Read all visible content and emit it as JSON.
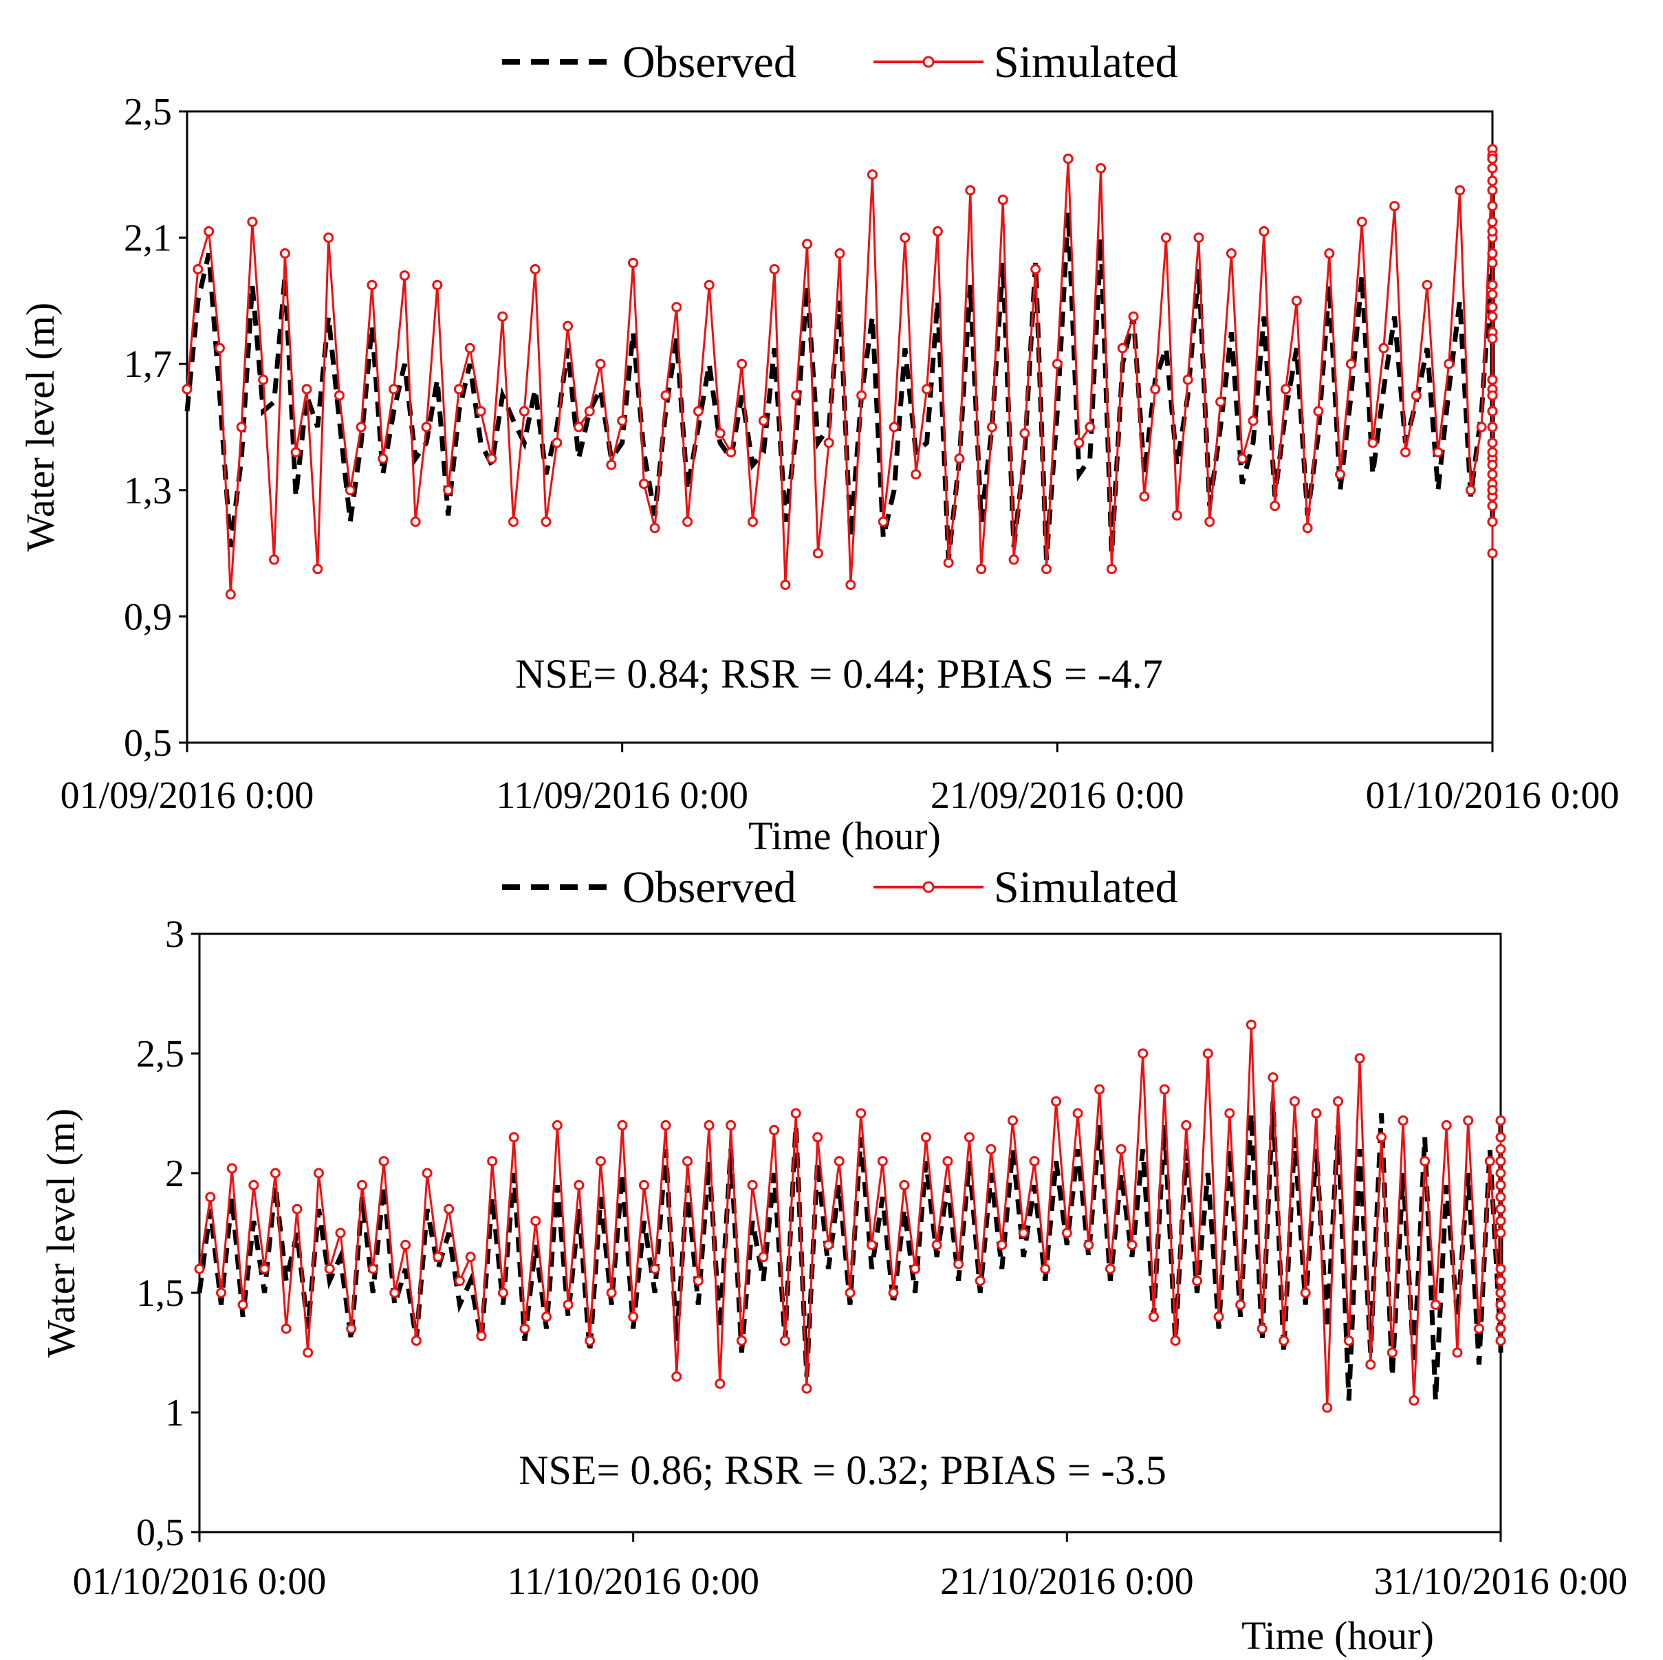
{
  "colors": {
    "observed": "#000000",
    "simulated": "#ee1111",
    "background": "#ffffff"
  },
  "chart_data": [
    {
      "type": "line",
      "title": "",
      "legend": {
        "placement": "top-center",
        "entries": [
          "Observed",
          "Simulated"
        ]
      },
      "xlabel": "Time  (hour)",
      "ylabel": "Water level (m)",
      "ylim": [
        0.5,
        2.5
      ],
      "yticks": [
        0.5,
        0.9,
        1.3,
        1.7,
        2.1,
        2.5
      ],
      "ytick_labels": [
        "0,5",
        "0,9",
        "1,3",
        "1,7",
        "2,1",
        "2,5"
      ],
      "xlim_days": [
        0,
        30
      ],
      "xticks_days": [
        0,
        10,
        20,
        30
      ],
      "xtick_labels": [
        "01/09/2016 0:00",
        "11/09/2016 0:00",
        "21/09/2016 0:00",
        "01/10/2016 0:00"
      ],
      "annotation": "NSE= 0.84; RSR = 0.44; PBIAS = -4.7",
      "sample_step_days": 0.25,
      "series": [
        {
          "name": "Observed",
          "style": "dashed",
          "values": [
            1.55,
            1.9,
            2.05,
            1.6,
            1.12,
            1.4,
            1.95,
            1.55,
            1.58,
            1.98,
            1.28,
            1.6,
            1.5,
            1.85,
            1.52,
            1.2,
            1.45,
            1.82,
            1.35,
            1.55,
            1.7,
            1.4,
            1.45,
            1.65,
            1.22,
            1.55,
            1.7,
            1.45,
            1.38,
            1.6,
            1.52,
            1.45,
            1.62,
            1.35,
            1.5,
            1.75,
            1.4,
            1.55,
            1.62,
            1.4,
            1.45,
            1.8,
            1.42,
            1.22,
            1.55,
            1.78,
            1.3,
            1.5,
            1.7,
            1.45,
            1.4,
            1.6,
            1.38,
            1.42,
            1.75,
            1.2,
            1.48,
            1.95,
            1.45,
            1.5,
            1.9,
            1.15,
            1.6,
            1.85,
            1.15,
            1.3,
            1.75,
            1.42,
            1.45,
            1.9,
            1.08,
            1.4,
            1.95,
            1.2,
            1.5,
            2.02,
            1.12,
            1.42,
            2.02,
            1.08,
            1.55,
            2.18,
            1.35,
            1.4,
            2.1,
            1.1,
            1.7,
            1.85,
            1.35,
            1.65,
            1.75,
            1.38,
            1.6,
            2.0,
            1.25,
            1.5,
            1.8,
            1.32,
            1.45,
            1.85,
            1.28,
            1.55,
            1.75,
            1.22,
            1.48,
            1.95,
            1.3,
            1.6,
            1.98,
            1.35,
            1.62,
            1.85,
            1.45,
            1.58,
            1.75,
            1.3,
            1.62,
            1.9,
            1.28,
            1.55,
            2.05,
            1.3,
            1.65,
            2.05,
            1.32,
            1.7,
            2.2,
            1.22,
            1.48,
            2.15,
            1.2,
            1.6,
            2.22,
            1.25,
            1.58,
            2.25,
            1.22,
            1.55,
            2.08,
            1.28,
            1.6,
            1.95,
            1.22,
            1.55,
            2.0,
            1.35,
            1.58,
            1.95,
            1.28,
            1.55,
            1.9,
            1.2,
            1.6,
            2.0,
            1.35,
            1.55,
            1.85,
            1.38,
            1.62,
            1.78,
            1.4,
            1.55,
            1.82,
            1.45,
            1.6,
            1.75,
            1.38,
            1.5,
            1.62,
            1.45,
            1.58,
            1.75,
            1.5,
            1.55
          ]
        },
        {
          "name": "Simulated",
          "style": "solid-circle-markers",
          "values": [
            1.62,
            2.0,
            2.12,
            1.75,
            0.97,
            1.5,
            2.15,
            1.65,
            1.08,
            2.05,
            1.42,
            1.62,
            1.05,
            2.1,
            1.6,
            1.3,
            1.5,
            1.95,
            1.4,
            1.62,
            1.98,
            1.2,
            1.5,
            1.95,
            1.3,
            1.62,
            1.75,
            1.55,
            1.4,
            1.85,
            1.2,
            1.55,
            2.0,
            1.2,
            1.45,
            1.82,
            1.5,
            1.55,
            1.7,
            1.38,
            1.52,
            2.02,
            1.32,
            1.18,
            1.6,
            1.88,
            1.2,
            1.55,
            1.95,
            1.48,
            1.42,
            1.7,
            1.2,
            1.52,
            2.0,
            1.0,
            1.6,
            2.08,
            1.1,
            1.45,
            2.05,
            1.0,
            1.6,
            2.3,
            1.2,
            1.5,
            2.1,
            1.35,
            1.62,
            2.12,
            1.07,
            1.4,
            2.25,
            1.05,
            1.5,
            2.22,
            1.08,
            1.48,
            2.0,
            1.05,
            1.7,
            2.35,
            1.45,
            1.5,
            2.32,
            1.05,
            1.75,
            1.85,
            1.28,
            1.62,
            2.1,
            1.22,
            1.65,
            2.1,
            1.2,
            1.58,
            2.05,
            1.4,
            1.52,
            2.12,
            1.25,
            1.62,
            1.9,
            1.18,
            1.55,
            2.05,
            1.35,
            1.7,
            2.15,
            1.45,
            1.75,
            2.2,
            1.42,
            1.6,
            1.95,
            1.42,
            1.7,
            2.25,
            1.3,
            1.5,
            2.35,
            1.28,
            1.8,
            2.15,
            1.25,
            1.65,
            2.38,
            1.2,
            1.5,
            2.25,
            1.3,
            1.6,
            2.36,
            1.2,
            1.65,
            2.35,
            1.25,
            1.55,
            2.32,
            1.32,
            1.62,
            2.05,
            1.28,
            1.55,
            2.1,
            1.45,
            1.6,
            2.32,
            1.3,
            1.55,
            2.28,
            1.1,
            1.65,
            2.2,
            1.35,
            1.5,
            1.92,
            1.3,
            1.6,
            2.05,
            1.4,
            1.55,
            2.02,
            1.38,
            1.6,
            2.12,
            1.35,
            1.55,
            1.95,
            1.5,
            1.62,
            1.85,
            1.42,
            1.6,
            1.88,
            1.78
          ]
        }
      ]
    },
    {
      "type": "line",
      "title": "",
      "legend": {
        "placement": "top-center",
        "entries": [
          "Observed",
          "Simulated"
        ]
      },
      "xlabel": "Time  (hour)",
      "ylabel": "Water level (m)",
      "ylim": [
        0.5,
        3.0
      ],
      "yticks": [
        0.5,
        1.0,
        1.5,
        2.0,
        2.5,
        3.0
      ],
      "ytick_labels": [
        "0,5",
        "1",
        "1,5",
        "2",
        "2,5",
        "3"
      ],
      "xlim_days": [
        0,
        30
      ],
      "xticks_days": [
        0,
        10,
        20,
        30
      ],
      "xtick_labels": [
        "01/10/2016 0:00",
        "11/10/2016 0:00",
        "21/10/2016 0:00",
        "31/10/2016 0:00"
      ],
      "annotation": "NSE= 0.86; RSR = 0.32; PBIAS = -3.5",
      "sample_step_days": 0.25,
      "series": [
        {
          "name": "Observed",
          "style": "dashed",
          "values": [
            1.5,
            1.85,
            1.45,
            1.9,
            1.4,
            1.8,
            1.5,
            1.95,
            1.55,
            1.75,
            1.35,
            1.85,
            1.55,
            1.65,
            1.3,
            1.9,
            1.5,
            1.95,
            1.45,
            1.6,
            1.3,
            1.85,
            1.6,
            1.75,
            1.45,
            1.55,
            1.3,
            1.9,
            1.45,
            2.0,
            1.3,
            1.7,
            1.35,
            1.95,
            1.4,
            1.85,
            1.25,
            1.9,
            1.45,
            2.0,
            1.35,
            1.8,
            1.5,
            2.1,
            1.3,
            1.95,
            1.45,
            2.05,
            1.35,
            2.1,
            1.25,
            1.8,
            1.55,
            2.0,
            1.3,
            2.2,
            1.15,
            2.05,
            1.6,
            1.95,
            1.45,
            2.15,
            1.6,
            1.9,
            1.45,
            1.85,
            1.5,
            2.05,
            1.65,
            1.95,
            1.55,
            2.05,
            1.5,
            2.0,
            1.6,
            2.1,
            1.65,
            1.95,
            1.55,
            2.05,
            1.7,
            2.1,
            1.65,
            2.2,
            1.55,
            2.0,
            1.65,
            2.1,
            1.4,
            2.2,
            1.3,
            2.1,
            1.5,
            2.0,
            1.35,
            2.1,
            1.4,
            2.25,
            1.3,
            2.3,
            1.25,
            2.15,
            1.45,
            2.1,
            1.35,
            2.2,
            1.05,
            2.1,
            1.25,
            2.25,
            1.15,
            2.0,
            1.2,
            2.15,
            1.05,
            1.95,
            1.4,
            2.0,
            1.2,
            2.1,
            1.3,
            1.95,
            1.35,
            2.05,
            1.25,
            1.85,
            1.45,
            1.9,
            1.3,
            1.8,
            1.35,
            1.85,
            1.45,
            1.75,
            1.3,
            1.8,
            1.4,
            1.65,
            1.3,
            1.75,
            1.55,
            1.7,
            1.4,
            1.65,
            1.5,
            1.75,
            1.45,
            1.8,
            1.55,
            1.7,
            1.45,
            1.75,
            1.5,
            1.85,
            1.45,
            1.7,
            1.5,
            1.8,
            1.45,
            1.85,
            1.3,
            1.7,
            1.4,
            1.75,
            1.35,
            2.05,
            1.5,
            2.2
          ]
        },
        {
          "name": "Simulated",
          "style": "solid-circle-markers",
          "values": [
            1.6,
            1.9,
            1.5,
            2.02,
            1.45,
            1.95,
            1.6,
            2.0,
            1.35,
            1.85,
            1.25,
            2.0,
            1.6,
            1.75,
            1.35,
            1.95,
            1.6,
            2.05,
            1.5,
            1.7,
            1.3,
            2.0,
            1.65,
            1.85,
            1.55,
            1.65,
            1.32,
            2.05,
            1.5,
            2.15,
            1.35,
            1.8,
            1.4,
            2.2,
            1.45,
            1.95,
            1.3,
            2.05,
            1.5,
            2.2,
            1.4,
            1.95,
            1.6,
            2.2,
            1.15,
            2.05,
            1.55,
            2.2,
            1.12,
            2.2,
            1.3,
            1.95,
            1.65,
            2.18,
            1.3,
            2.25,
            1.1,
            2.15,
            1.7,
            2.05,
            1.5,
            2.25,
            1.7,
            2.05,
            1.5,
            1.95,
            1.6,
            2.15,
            1.7,
            2.05,
            1.62,
            2.15,
            1.55,
            2.1,
            1.7,
            2.22,
            1.75,
            2.05,
            1.6,
            2.3,
            1.75,
            2.25,
            1.7,
            2.35,
            1.6,
            2.1,
            1.7,
            2.5,
            1.4,
            2.35,
            1.3,
            2.2,
            1.55,
            2.5,
            1.4,
            2.25,
            1.45,
            2.62,
            1.35,
            2.4,
            1.3,
            2.3,
            1.5,
            2.25,
            1.02,
            2.3,
            1.3,
            2.48,
            1.2,
            2.15,
            1.25,
            2.22,
            1.05,
            2.05,
            1.45,
            2.2,
            1.25,
            2.22,
            1.35,
            2.05,
            1.4,
            2.15,
            1.3,
            1.95,
            1.5,
            2.05,
            1.35,
            1.9,
            1.4,
            1.95,
            1.5,
            1.85,
            1.35,
            1.95,
            1.45,
            1.8,
            1.35,
            1.9,
            1.6,
            1.85,
            1.45,
            1.75,
            1.55,
            1.85,
            1.5,
            1.95,
            1.6,
            1.8,
            1.5,
            1.85,
            1.55,
            2.05,
            1.5,
            1.8,
            1.55,
            1.95,
            1.5,
            2.0,
            1.35,
            1.85,
            1.45,
            1.8,
            1.4,
            2.1,
            1.55,
            2.22
          ]
        }
      ]
    }
  ]
}
